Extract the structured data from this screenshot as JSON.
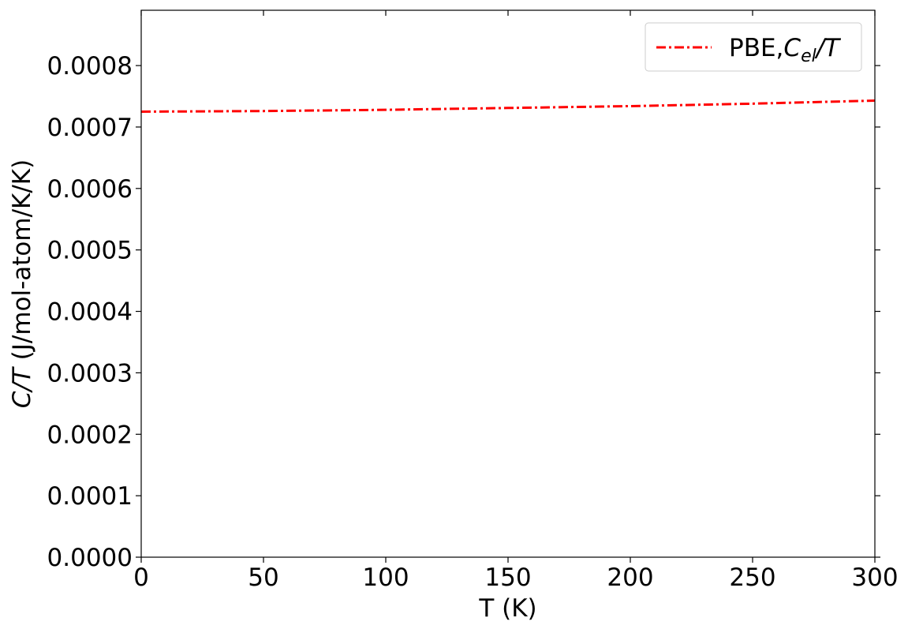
{
  "chart_data": {
    "type": "line",
    "xlabel": "T (K)",
    "ylabel": {
      "main": "C/T",
      "units": " (J/mol-atom/K/K)"
    },
    "xlim": [
      0,
      300
    ],
    "ylim": [
      0,
      0.00089
    ],
    "xticks": [
      0,
      50,
      100,
      150,
      200,
      250,
      300
    ],
    "xtick_labels": [
      "0",
      "50",
      "100",
      "150",
      "200",
      "250",
      "300"
    ],
    "yticks": [
      0,
      0.0001,
      0.0002,
      0.0003,
      0.0004,
      0.0005,
      0.0006,
      0.0007,
      0.0008
    ],
    "ytick_labels": [
      "0.0000",
      "0.0001",
      "0.0002",
      "0.0003",
      "0.0004",
      "0.0005",
      "0.0006",
      "0.0007",
      "0.0008"
    ],
    "grid": false,
    "legend_position": "top-right",
    "series": [
      {
        "name": {
          "prefix": "PBE,",
          "symbol": "C",
          "subscript": "el",
          "suffix": "/T"
        },
        "color": "#ff0000",
        "linestyle": "dash-dot",
        "x": [
          0,
          50,
          100,
          150,
          200,
          250,
          300
        ],
        "y": [
          0.000725,
          0.000726,
          0.000728,
          0.000731,
          0.000734,
          0.000738,
          0.000743
        ]
      }
    ]
  }
}
